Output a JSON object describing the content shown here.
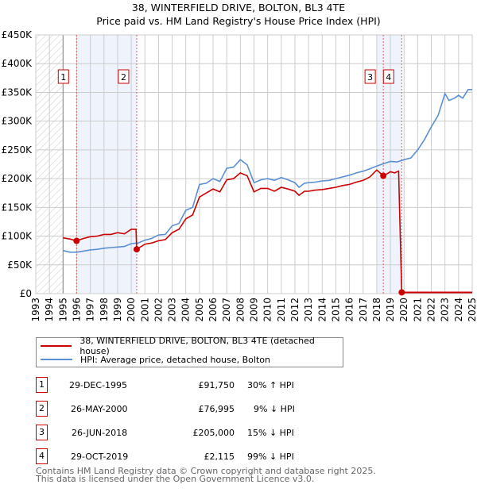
{
  "chart_data": {
    "type": "line",
    "title": "38, WINTERFIELD DRIVE, BOLTON, BL3 4TE",
    "subtitle": "Price paid vs. HM Land Registry's House Price Index (HPI)",
    "xlim": [
      1993,
      2025
    ],
    "ylim": [
      0,
      450000
    ],
    "y_ticks": [
      0,
      50000,
      100000,
      150000,
      200000,
      250000,
      300000,
      350000,
      400000,
      450000
    ],
    "y_tick_labels": [
      "£0",
      "£50K",
      "£100K",
      "£150K",
      "£200K",
      "£250K",
      "£300K",
      "£350K",
      "£400K",
      "£450K"
    ],
    "x_tick_labels": [
      "1993",
      "1994",
      "1995",
      "1996",
      "1997",
      "1998",
      "1999",
      "2000",
      "2001",
      "2002",
      "2003",
      "2004",
      "2005",
      "2006",
      "2007",
      "2008",
      "2009",
      "2010",
      "2011",
      "2012",
      "2013",
      "2014",
      "2015",
      "2016",
      "2017",
      "2018",
      "2019",
      "2020",
      "2021",
      "2022",
      "2023",
      "2024",
      "2025"
    ],
    "grid": true,
    "hatched_range": [
      1993,
      1995
    ],
    "shaded_ranges": [
      [
        1995.99,
        2000.4
      ],
      [
        2018.0,
        2019.83
      ]
    ],
    "series": [
      {
        "name": "38, WINTERFIELD DRIVE, BOLTON, BL3 4TE (detached house)",
        "color": "#cc0000",
        "x": [
          1995,
          1995.5,
          1995.99,
          1996.5,
          1997,
          1997.5,
          1998,
          1998.5,
          1999,
          1999.5,
          2000,
          2000.35,
          2000.4,
          2001,
          2001.5,
          2002,
          2002.5,
          2003,
          2003.5,
          2004,
          2004.5,
          2005,
          2005.5,
          2006,
          2006.5,
          2007,
          2007.5,
          2008,
          2008.5,
          2009,
          2009.5,
          2010,
          2010.5,
          2011,
          2011.5,
          2012,
          2012.3,
          2012.7,
          2013,
          2013.5,
          2014,
          2014.5,
          2015,
          2015.5,
          2016,
          2016.5,
          2017,
          2017.5,
          2018,
          2018.48,
          2018.8,
          2019,
          2019.3,
          2019.6,
          2019.83,
          2025
        ],
        "y": [
          97000,
          95000,
          91750,
          96000,
          99000,
          100000,
          103000,
          103000,
          106000,
          104000,
          112000,
          112000,
          76995,
          86000,
          88000,
          92000,
          94000,
          106000,
          112000,
          130000,
          137000,
          168000,
          175000,
          182000,
          177000,
          198000,
          200000,
          210000,
          205000,
          177000,
          183000,
          183000,
          178000,
          185000,
          182000,
          178000,
          171000,
          178000,
          178000,
          180000,
          181000,
          183000,
          185000,
          188000,
          190000,
          194000,
          197000,
          203000,
          215000,
          205000,
          209000,
          212000,
          210000,
          213000,
          2115,
          2115
        ]
      },
      {
        "name": "HPI: Average price, detached house, Bolton",
        "color": "#5b8fd4",
        "x": [
          1995,
          1995.5,
          1996,
          1996.5,
          1997,
          1997.5,
          1998,
          1998.5,
          1999,
          1999.5,
          2000,
          2000.5,
          2001,
          2001.5,
          2002,
          2002.5,
          2003,
          2003.5,
          2004,
          2004.5,
          2005,
          2005.5,
          2006,
          2006.5,
          2007,
          2007.5,
          2008,
          2008.5,
          2009,
          2009.5,
          2010,
          2010.5,
          2011,
          2011.5,
          2012,
          2012.3,
          2012.7,
          2013,
          2013.5,
          2014,
          2014.5,
          2015,
          2015.5,
          2016,
          2016.5,
          2017,
          2017.5,
          2018,
          2018.5,
          2019,
          2019.5,
          2020,
          2020.5,
          2021,
          2021.5,
          2022,
          2022.5,
          2023,
          2023.3,
          2023.7,
          2024,
          2024.3,
          2024.7,
          2025
        ],
        "y": [
          75000,
          72000,
          72000,
          74000,
          76000,
          77000,
          79000,
          80000,
          81000,
          82000,
          87000,
          88000,
          93000,
          96000,
          102000,
          103000,
          118000,
          122000,
          145000,
          150000,
          190000,
          192000,
          200000,
          195000,
          218000,
          220000,
          233000,
          224000,
          193000,
          198000,
          200000,
          197000,
          202000,
          198000,
          193000,
          185000,
          192000,
          193000,
          194000,
          196000,
          197000,
          200000,
          203000,
          206000,
          210000,
          213000,
          217000,
          222000,
          226000,
          230000,
          229000,
          233000,
          236000,
          250000,
          268000,
          290000,
          310000,
          348000,
          336000,
          340000,
          345000,
          340000,
          355000,
          355000
        ]
      }
    ],
    "sales": [
      {
        "label": "1",
        "x": 1995.99,
        "y": 91750
      },
      {
        "label": "2",
        "x": 2000.4,
        "y": 76995
      },
      {
        "label": "3",
        "x": 2018.48,
        "y": 205000
      },
      {
        "label": "4",
        "x": 2019.83,
        "y": 2115
      }
    ]
  },
  "legend": [
    {
      "label": "38, WINTERFIELD DRIVE, BOLTON, BL3 4TE (detached house)",
      "color": "#cc0000"
    },
    {
      "label": "HPI: Average price, detached house, Bolton",
      "color": "#5b8fd4"
    }
  ],
  "table": [
    {
      "num": "1",
      "date": "29-DEC-1995",
      "price": "£91,750",
      "hpi": "30% ↑ HPI"
    },
    {
      "num": "2",
      "date": "26-MAY-2000",
      "price": "£76,995",
      "hpi": "9% ↓ HPI"
    },
    {
      "num": "3",
      "date": "26-JUN-2018",
      "price": "£205,000",
      "hpi": "15% ↓ HPI"
    },
    {
      "num": "4",
      "date": "29-OCT-2019",
      "price": "£2,115",
      "hpi": "99% ↓ HPI"
    }
  ],
  "footer": {
    "line1": "Contains HM Land Registry data © Crown copyright and database right 2025.",
    "line2": "This data is licensed under the Open Government Licence v3.0."
  }
}
